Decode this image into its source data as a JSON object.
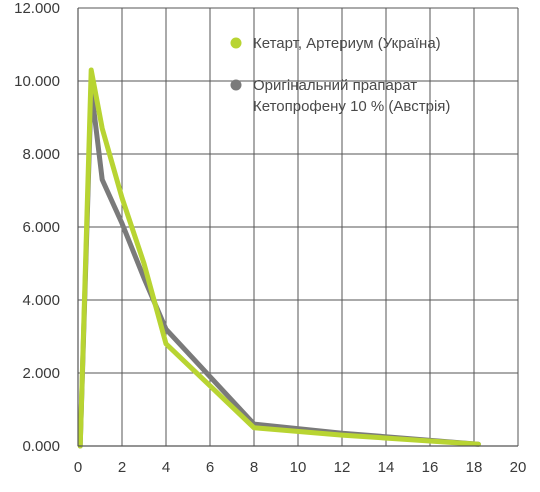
{
  "chart_data": {
    "type": "line",
    "title": "",
    "xlabel": "",
    "ylabel": "",
    "xlim": [
      0,
      20
    ],
    "ylim": [
      0,
      12
    ],
    "x_ticks": [
      {
        "value": 0,
        "label": "0"
      },
      {
        "value": 2,
        "label": "2"
      },
      {
        "value": 4,
        "label": "4"
      },
      {
        "value": 6,
        "label": "6"
      },
      {
        "value": 8,
        "label": "8"
      },
      {
        "value": 10,
        "label": "10"
      },
      {
        "value": 12,
        "label": "12"
      },
      {
        "value": 14,
        "label": "14"
      },
      {
        "value": 16,
        "label": "16"
      },
      {
        "value": 18,
        "label": "18"
      },
      {
        "value": 20,
        "label": "20"
      }
    ],
    "y_ticks": [
      {
        "value": 0,
        "label": "0.000"
      },
      {
        "value": 2,
        "label": "2.000"
      },
      {
        "value": 4,
        "label": "4.000"
      },
      {
        "value": 6,
        "label": "6.000"
      },
      {
        "value": 8,
        "label": "8.000"
      },
      {
        "value": 10,
        "label": "10.000"
      },
      {
        "value": 12,
        "label": "12.000"
      }
    ],
    "grid": true,
    "legend_position": "top-right",
    "series": [
      {
        "name": "Кетарт, Артериум (Україна)",
        "legend_lines": [
          "Кетарт, Артериум (Україна)"
        ],
        "color": "#b8d432",
        "points": [
          {
            "x": 0.1,
            "y": 0
          },
          {
            "x": 0.6,
            "y": 10.3
          },
          {
            "x": 1.1,
            "y": 8.7
          },
          {
            "x": 2,
            "y": 6.8
          },
          {
            "x": 3,
            "y": 5.0
          },
          {
            "x": 4,
            "y": 2.8
          },
          {
            "x": 8,
            "y": 0.5
          },
          {
            "x": 12,
            "y": 0.3
          },
          {
            "x": 18.2,
            "y": 0.05
          }
        ]
      },
      {
        "name": "Оригінальний прапарат Кетопрофену 10 % (Австрія)",
        "legend_lines": [
          "Оригінальний прапарат",
          "Кетопрофену 10 % (Австрія)"
        ],
        "color": "#7a7a7a",
        "points": [
          {
            "x": 0.1,
            "y": 0
          },
          {
            "x": 0.6,
            "y": 9.8
          },
          {
            "x": 1.1,
            "y": 7.3
          },
          {
            "x": 2,
            "y": 6.1
          },
          {
            "x": 3,
            "y": 4.6
          },
          {
            "x": 4,
            "y": 3.2
          },
          {
            "x": 8,
            "y": 0.6
          },
          {
            "x": 12,
            "y": 0.35
          },
          {
            "x": 18.2,
            "y": 0.05
          }
        ]
      }
    ]
  }
}
